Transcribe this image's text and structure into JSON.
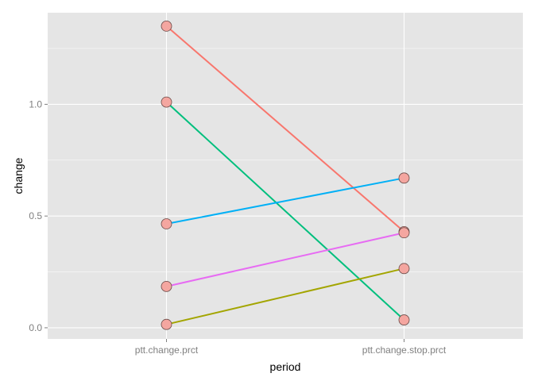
{
  "chart_data": {
    "type": "line",
    "title": "",
    "xlabel": "period",
    "ylabel": "change",
    "categories": [
      "ptt.change.prct",
      "ptt.change.stop.prct"
    ],
    "y_ticks": [
      0.0,
      0.5,
      1.0
    ],
    "y_tick_labels": [
      "0.0",
      "0.5",
      "1.0"
    ],
    "ylim": [
      -0.05,
      1.41
    ],
    "grid": true,
    "legend": "none",
    "background_color": "#e5e5e5",
    "grid_color": "#ffffff",
    "point_fill": "#f4a6a0",
    "point_stroke": "#6b4a47",
    "series": [
      {
        "color": "#f8766d",
        "values": [
          1.35,
          0.43
        ]
      },
      {
        "color": "#00bf7d",
        "values": [
          1.01,
          0.035
        ]
      },
      {
        "color": "#00b0f6",
        "values": [
          0.465,
          0.67
        ]
      },
      {
        "color": "#e76bf3",
        "values": [
          0.185,
          0.425
        ]
      },
      {
        "color": "#a3a500",
        "values": [
          0.015,
          0.265
        ]
      }
    ]
  }
}
